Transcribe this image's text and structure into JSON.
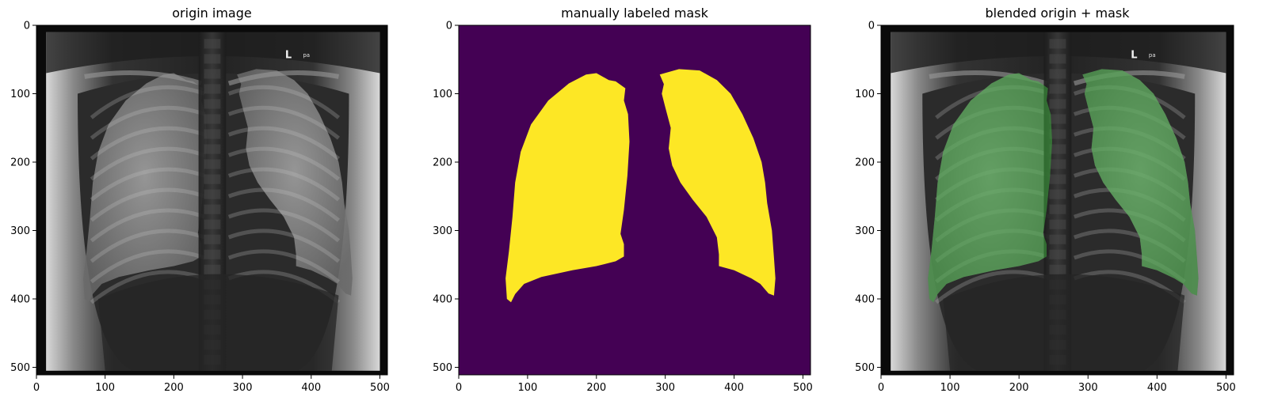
{
  "figure": {
    "panels": [
      {
        "title": "origin image",
        "kind": "xray",
        "xticks": [
          "0",
          "100",
          "200",
          "300",
          "400",
          "500"
        ],
        "yticks": [
          "0",
          "100",
          "200",
          "300",
          "400",
          "500"
        ],
        "marker": {
          "letter": "L",
          "sub": "pa"
        }
      },
      {
        "title": "manually labeled mask",
        "kind": "mask",
        "xticks": [
          "0",
          "100",
          "200",
          "300",
          "400",
          "500"
        ],
        "yticks": [
          "0",
          "100",
          "200",
          "300",
          "400",
          "500"
        ]
      },
      {
        "title": "blended origin + mask",
        "kind": "blend",
        "xticks": [
          "0",
          "100",
          "200",
          "300",
          "400",
          "500"
        ],
        "yticks": [
          "0",
          "100",
          "200",
          "300",
          "400",
          "500"
        ],
        "marker": {
          "letter": "L",
          "sub": "pa"
        }
      }
    ]
  },
  "colors": {
    "mask_background": "#440154",
    "mask_foreground": "#fde725",
    "overlay": "#3aa63a",
    "xray_dark": "#151515",
    "xray_light": "#e6e6e6"
  }
}
